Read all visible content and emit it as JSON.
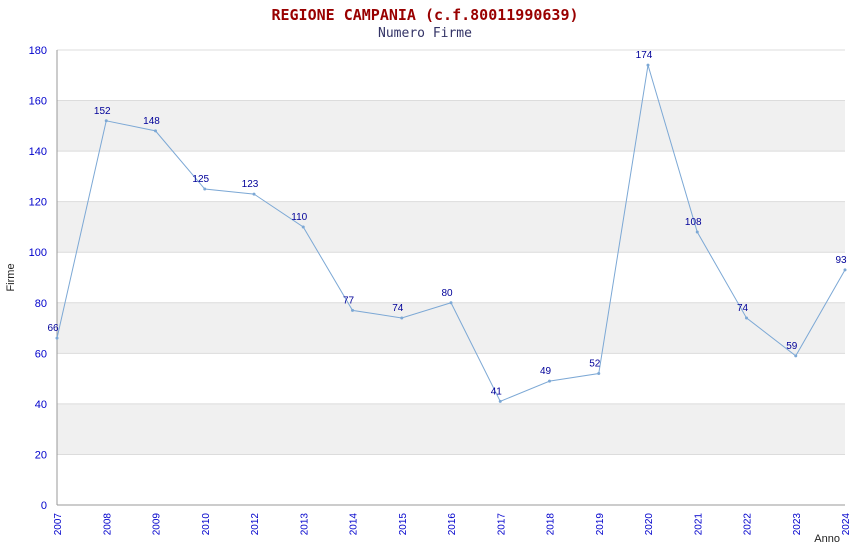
{
  "header": {
    "title": "REGIONE CAMPANIA (c.f.80011990639)",
    "subtitle": "Numero Firme"
  },
  "chart_data": {
    "type": "line",
    "title": "REGIONE CAMPANIA (c.f.80011990639)",
    "subtitle": "Numero Firme",
    "categories": [
      "2007",
      "2008",
      "2009",
      "2010",
      "2012",
      "2013",
      "2014",
      "2015",
      "2016",
      "2017",
      "2018",
      "2019",
      "2020",
      "2021",
      "2022",
      "2023",
      "2024"
    ],
    "values": [
      66,
      152,
      148,
      125,
      123,
      110,
      77,
      74,
      80,
      41,
      49,
      52,
      174,
      108,
      74,
      59,
      93
    ],
    "xlabel": "Anno",
    "ylabel": "Firme",
    "ylim": [
      0,
      180
    ],
    "ytick_step": 20,
    "yticks": [
      0,
      20,
      40,
      60,
      80,
      100,
      120,
      140,
      160,
      180
    ],
    "grid": "horizontal-alternating-bands",
    "legend": "none",
    "colors": {
      "line": "#7ca8d5",
      "point": "#7ca8d5",
      "data_label": "#000099",
      "tick_label": "#0000cc",
      "axis_title": "#222222",
      "band": "#f0f0f0",
      "gridline": "#dcdcdc",
      "axis_line": "#999999",
      "title": "#990000",
      "subtitle": "#333366"
    }
  }
}
